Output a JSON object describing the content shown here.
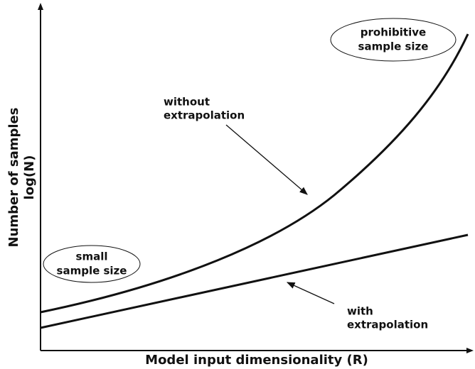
{
  "axes": {
    "x_label": "Model input dimensionality (R)",
    "y_label": [
      "Number of samples",
      "log(N)"
    ]
  },
  "annotations": {
    "prohibitive": [
      "prohibitive",
      "sample size"
    ],
    "small": [
      "small",
      "sample size"
    ],
    "without": [
      "without",
      "extrapolation"
    ],
    "with": [
      "with",
      "extrapolation"
    ]
  }
}
